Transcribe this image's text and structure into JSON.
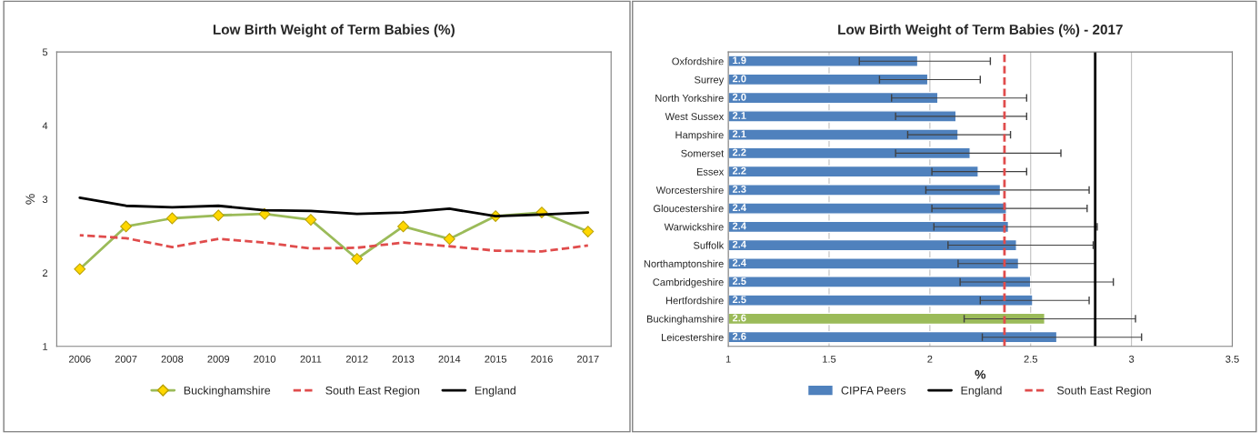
{
  "chart_data": [
    {
      "type": "line",
      "title": "Low Birth Weight of Term Babies (%)",
      "ylabel": "%",
      "categories": [
        "2006",
        "2007",
        "2008",
        "2009",
        "2010",
        "2011",
        "2012",
        "2013",
        "2014",
        "2015",
        "2016",
        "2017"
      ],
      "ylim": [
        1,
        5
      ],
      "yticks": [
        1,
        2,
        3,
        4,
        5
      ],
      "legend": "bottom",
      "series": [
        {
          "name": "Buckinghamshire",
          "color": "#9bbb59",
          "marker": "diamond",
          "line_style": "solid",
          "values": [
            2.05,
            2.63,
            2.74,
            2.78,
            2.8,
            2.72,
            2.19,
            2.63,
            2.46,
            2.77,
            2.82,
            2.56
          ]
        },
        {
          "name": "South East Region",
          "color": "#e04c4c",
          "marker": "none",
          "line_style": "dashed",
          "values": [
            2.51,
            2.47,
            2.35,
            2.46,
            2.41,
            2.33,
            2.34,
            2.41,
            2.36,
            2.3,
            2.29,
            2.37
          ]
        },
        {
          "name": "England",
          "color": "#000000",
          "marker": "none",
          "line_style": "solid",
          "values": [
            3.02,
            2.91,
            2.89,
            2.91,
            2.85,
            2.84,
            2.8,
            2.82,
            2.87,
            2.77,
            2.79,
            2.82
          ]
        }
      ]
    },
    {
      "type": "bar",
      "orientation": "horizontal",
      "title": "Low Birth Weight of Term Babies (%) - 2017",
      "xlabel": "%",
      "xlim": [
        1,
        3.5
      ],
      "xticks": [
        1,
        1.5,
        2,
        2.5,
        3,
        3.5
      ],
      "grid": "x",
      "legend": "bottom",
      "categories": [
        "Oxfordshire",
        "Surrey",
        "North Yorkshire",
        "West Sussex",
        "Hampshire",
        "Somerset",
        "Essex",
        "Worcestershire",
        "Gloucestershire",
        "Warwickshire",
        "Suffolk",
        "Northamptonshire",
        "Cambridgeshire",
        "Hertfordshire",
        "Buckinghamshire",
        "Leicestershire"
      ],
      "series": [
        {
          "name": "CIPFA Peers",
          "color": "#4f81bd",
          "colors": [
            "#4f81bd",
            "#4f81bd",
            "#4f81bd",
            "#4f81bd",
            "#4f81bd",
            "#4f81bd",
            "#4f81bd",
            "#4f81bd",
            "#4f81bd",
            "#4f81bd",
            "#4f81bd",
            "#4f81bd",
            "#4f81bd",
            "#4f81bd",
            "#9bbb59",
            "#4f81bd"
          ],
          "values": [
            1.94,
            1.99,
            2.04,
            2.13,
            2.14,
            2.2,
            2.24,
            2.35,
            2.38,
            2.39,
            2.43,
            2.44,
            2.5,
            2.51,
            2.57,
            2.63
          ],
          "value_labels": [
            "1.9",
            "2.0",
            "2.0",
            "2.1",
            "2.1",
            "2.2",
            "2.2",
            "2.3",
            "2.4",
            "2.4",
            "2.4",
            "2.4",
            "2.5",
            "2.5",
            "2.6",
            "2.6"
          ],
          "errors": [
            [
              1.65,
              2.3
            ],
            [
              1.75,
              2.25
            ],
            [
              1.81,
              2.48
            ],
            [
              1.83,
              2.48
            ],
            [
              1.89,
              2.4
            ],
            [
              1.83,
              2.65
            ],
            [
              2.01,
              2.48
            ],
            [
              1.98,
              2.79
            ],
            [
              2.01,
              2.78
            ],
            [
              2.02,
              2.83
            ],
            [
              2.09,
              2.81
            ],
            [
              2.14,
              2.82
            ],
            [
              2.15,
              2.91
            ],
            [
              2.25,
              2.79
            ],
            [
              2.17,
              3.02
            ],
            [
              2.26,
              3.05
            ]
          ]
        }
      ],
      "ref_lines": [
        {
          "axis": "x",
          "value": 2.82,
          "label": "England",
          "color": "#000000",
          "line_style": "solid"
        },
        {
          "axis": "x",
          "value": 2.37,
          "label": "South East Region",
          "color": "#e04c4c",
          "line_style": "dashed"
        }
      ]
    }
  ]
}
